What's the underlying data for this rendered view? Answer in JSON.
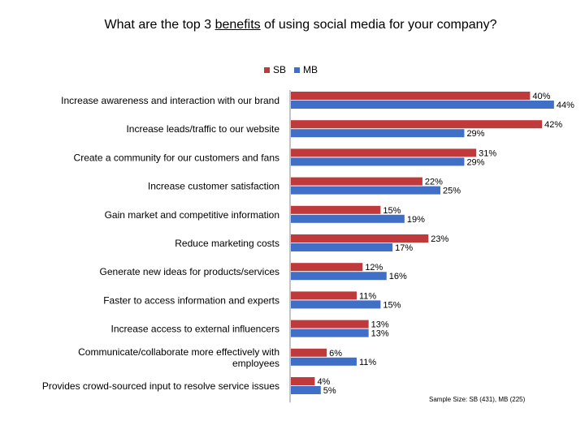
{
  "title": {
    "before": "What are the top 3 ",
    "underlined": "benefits",
    "after": " of using social media for your company?"
  },
  "legend": [
    {
      "label": "SB",
      "color": "#c0393b"
    },
    {
      "label": "MB",
      "color": "#3f6fc7"
    }
  ],
  "note": "Sample Size: SB (431), MB (225)",
  "chart_data": {
    "type": "bar",
    "orientation": "horizontal",
    "categories": [
      [
        "Increase awareness and interaction with our brand"
      ],
      [
        "Increase leads/traffic to our website"
      ],
      [
        "Create a community for our customers and fans"
      ],
      [
        "Increase customer satisfaction"
      ],
      [
        "Gain market and competitive information"
      ],
      [
        "Reduce marketing costs"
      ],
      [
        "Generate new ideas for products/services"
      ],
      [
        "Faster to access information and experts"
      ],
      [
        "Increase access to external influencers"
      ],
      [
        "Communicate/collaborate more effectively with",
        "employees"
      ],
      [
        "Provides crowd-sourced input to resolve service issues"
      ]
    ],
    "series": [
      {
        "name": "SB",
        "color": "#c0393b",
        "values": [
          40,
          42,
          31,
          22,
          15,
          23,
          12,
          11,
          13,
          6,
          4
        ]
      },
      {
        "name": "MB",
        "color": "#3f6fc7",
        "values": [
          44,
          29,
          29,
          25,
          19,
          17,
          16,
          15,
          13,
          11,
          5
        ]
      }
    ],
    "value_suffix": "%",
    "xlim": [
      0,
      50
    ],
    "grid": false,
    "legend_position": "top"
  }
}
